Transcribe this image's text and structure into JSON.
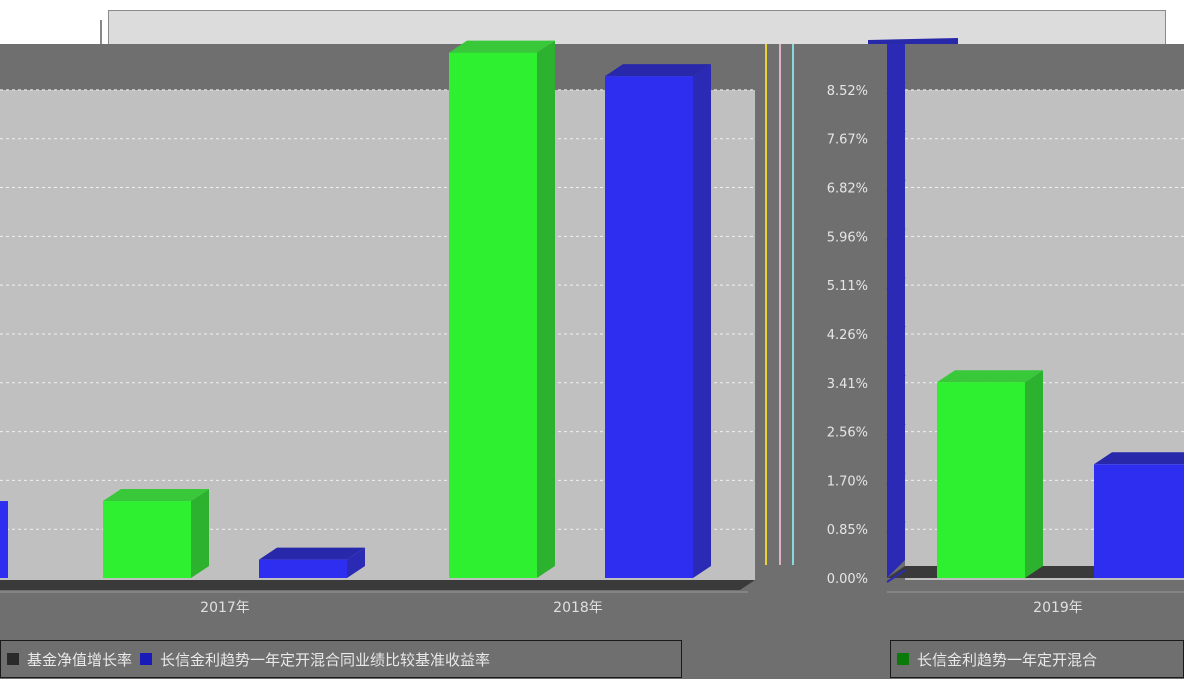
{
  "chart_data": [
    {
      "type": "bar",
      "categories": [
        "2017年",
        "2018年"
      ],
      "series": [
        {
          "name": "基金净值增长率",
          "values": [
            1.34,
            9.15
          ]
        },
        {
          "name": "长信金利趋势一年定开混合同业绩比较基准收益率",
          "values": [
            0.32,
            8.74
          ]
        }
      ],
      "title": "",
      "xlabel": "",
      "ylabel": "",
      "ylim": [
        0,
        9.3
      ]
    },
    {
      "type": "bar",
      "categories": [
        "2019年"
      ],
      "series": [
        {
          "name": "长信金利趋势一年定开混合",
          "values": [
            3.41
          ]
        },
        {
          "name": "业绩比较基准",
          "values": [
            1.98
          ]
        }
      ],
      "title": "",
      "xlabel": "",
      "ylabel": "",
      "ylim": [
        0,
        9.3
      ],
      "yticks": [
        "0.00%",
        "0.85%",
        "1.70%",
        "2.56%",
        "3.41%",
        "4.26%",
        "5.11%",
        "5.96%",
        "6.82%",
        "7.67%",
        "8.52%"
      ]
    }
  ],
  "legends": {
    "left": [
      {
        "text": "基金净值增长率",
        "color": "#2a2a2a"
      },
      {
        "text": "长信金利趋势一年定开混合同业绩比较基准收益率",
        "color": "#1a1ab8"
      }
    ],
    "right": [
      {
        "text": "长信金利趋势一年定开混合",
        "color": "#0a7a0a"
      }
    ]
  },
  "colors": {
    "green_front": "#2ef030",
    "green_side": "#2cb22e",
    "green_top": "#38c83a",
    "blue_front": "#2e2ef0",
    "blue_side": "#2a2ab4",
    "blue_top": "#2828aa",
    "plot_bg": "#c0c0c0",
    "page_bg": "#6f6f6f"
  }
}
